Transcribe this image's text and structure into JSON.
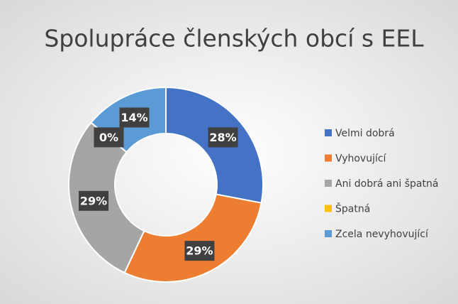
{
  "chart_data": {
    "type": "donut",
    "title": "Spolupráce členských obcí s EEL",
    "categories": [
      "Velmi dobrá",
      "Vyhovující",
      "Ani dobrá ani špatná",
      "Špatná",
      "Zcela nevyhovující"
    ],
    "values": [
      28,
      29,
      29,
      0,
      14
    ],
    "value_labels": [
      "28%",
      "29%",
      "29%",
      "0%",
      "14%"
    ],
    "colors": [
      "#4472c4",
      "#ed7d31",
      "#a5a5a5",
      "#ffc000",
      "#5b9bd5"
    ],
    "legend": "right"
  }
}
